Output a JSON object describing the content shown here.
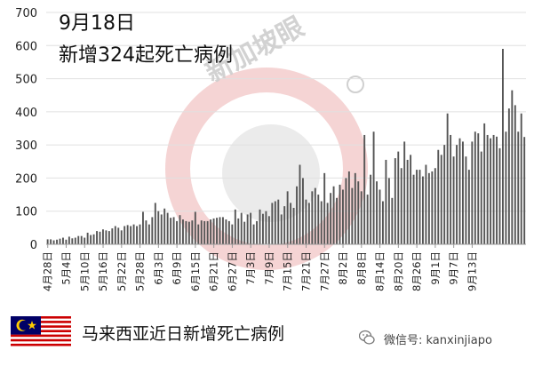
{
  "title": {
    "date": "9月18日",
    "subtitle": "新增324起死亡病例"
  },
  "footer": {
    "caption": "马来西亚近日新增死亡病例",
    "wechat_label": "微信号: kanxinjiapo"
  },
  "watermark": {
    "text": "新加坡眼"
  },
  "colors": {
    "bar": "#555555",
    "axis": "#999999",
    "grid": "#e0e0e0",
    "watermark_red": "#f2c6c6"
  },
  "chart_data": {
    "type": "bar",
    "title": "9月18日 新增324起死亡病例",
    "xlabel": "",
    "ylabel": "",
    "ylim": [
      0,
      700
    ],
    "yticks": [
      0,
      100,
      200,
      300,
      400,
      500,
      600,
      700
    ],
    "grid": true,
    "x_start": "4月28日",
    "x_end": "9月18日",
    "tick_labels": [
      "4月28日",
      "5月4日",
      "5月10日",
      "5月16日",
      "5月22日",
      "5月28日",
      "6月3日",
      "6月9日",
      "6月15日",
      "6月21日",
      "6月27日",
      "7月3日",
      "7月9日",
      "7月15日",
      "7月21日",
      "7月27日",
      "8月2日",
      "8月8日",
      "8月14日",
      "8月20日",
      "8月26日",
      "9月1日",
      "9月7日",
      "9月13日"
    ],
    "values": [
      15,
      15,
      12,
      14,
      17,
      20,
      14,
      23,
      18,
      20,
      25,
      25,
      20,
      35,
      28,
      30,
      40,
      38,
      45,
      42,
      40,
      48,
      55,
      50,
      42,
      55,
      58,
      55,
      60,
      55,
      60,
      98,
      72,
      60,
      82,
      125,
      100,
      90,
      108,
      95,
      80,
      82,
      70,
      88,
      75,
      70,
      68,
      72,
      98,
      60,
      72,
      70,
      70,
      75,
      78,
      80,
      82,
      82,
      75,
      70,
      60,
      105,
      78,
      95,
      68,
      90,
      95,
      60,
      70,
      105,
      92,
      100,
      85,
      125,
      130,
      135,
      90,
      115,
      160,
      125,
      110,
      175,
      240,
      200,
      135,
      125,
      160,
      170,
      150,
      130,
      215,
      125,
      155,
      175,
      140,
      180,
      165,
      200,
      220,
      170,
      215,
      190,
      160,
      330,
      150,
      210,
      340,
      190,
      165,
      130,
      255,
      200,
      140,
      260,
      280,
      230,
      310,
      255,
      270,
      210,
      225,
      225,
      205,
      240,
      215,
      220,
      230,
      285,
      270,
      300,
      395,
      330,
      265,
      300,
      320,
      310,
      265,
      225,
      310,
      340,
      335,
      280,
      365,
      330,
      320,
      330,
      325,
      290,
      590,
      340,
      410,
      465,
      420,
      340,
      395,
      324
    ]
  }
}
